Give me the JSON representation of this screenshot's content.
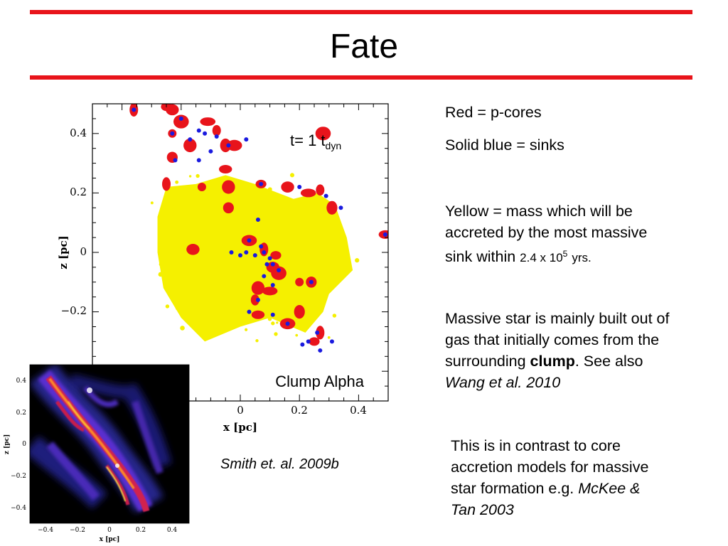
{
  "slide": {
    "title": "Fate"
  },
  "legend": {
    "red": "Red = p-cores",
    "blue": "Solid blue = sinks",
    "yellow_a": "Yellow = mass which will be",
    "yellow_b": "accreted by the most massive",
    "yellow_c": "sink within",
    "yellow_num": "2.4 x 10",
    "yellow_exp": "5",
    "yellow_end": "yrs."
  },
  "massive": {
    "l1": "Massive star is mainly built out of",
    "l2": "gas that initially comes from the",
    "l3a": "surrounding ",
    "l3b": "clump",
    "l3c": ". See also",
    "l4": "Wang et al. 2010"
  },
  "contrast": {
    "l1": "This is in contrast to core",
    "l2": "accretion models for massive",
    "l3a": "star formation e.g. ",
    "l3b": "McKee &",
    "l4": "Tan 2003"
  },
  "citation": "Smith et. al. 2009b",
  "colors": {
    "rule": "#e8141b",
    "core": "#e8141b",
    "sink": "#1a1adf",
    "accreted": "#f5f000"
  },
  "chart_data": [
    {
      "type": "scatter",
      "title": "",
      "xlabel": "x [pc]",
      "ylabel": "z [pc]",
      "xlim": [
        -0.5,
        0.5
      ],
      "ylim": [
        -0.5,
        0.5
      ],
      "xticks": [
        "0",
        "0.2",
        "0.4"
      ],
      "yticks": [
        "0.4",
        "0.2",
        "0",
        "−0.2"
      ],
      "annotation_time": "t= 1 t",
      "annotation_sub": "dyn",
      "annotation_label": "Clump Alpha",
      "series": [
        {
          "name": "Red = p-cores",
          "points": [
            [
              -0.36,
              0.48
            ],
            [
              -0.25,
              0.49
            ],
            [
              -0.23,
              0.48
            ],
            [
              -0.2,
              0.44
            ],
            [
              -0.23,
              0.4
            ],
            [
              -0.23,
              0.32
            ],
            [
              -0.17,
              0.36
            ],
            [
              -0.11,
              0.44
            ],
            [
              -0.08,
              0.41
            ],
            [
              -0.05,
              0.36
            ],
            [
              -0.05,
              0.28
            ],
            [
              -0.02,
              0.36
            ],
            [
              -0.25,
              0.23
            ],
            [
              0.07,
              0.23
            ],
            [
              0.16,
              0.22
            ],
            [
              0.28,
              0.4
            ],
            [
              -0.13,
              0.22
            ],
            [
              -0.04,
              0.15
            ],
            [
              -0.04,
              0.22
            ],
            [
              0.23,
              0.2
            ],
            [
              0.27,
              0.21
            ],
            [
              0.31,
              0.15
            ],
            [
              0.49,
              0.06
            ],
            [
              0.03,
              0.04
            ],
            [
              0.08,
              0.01
            ],
            [
              0.12,
              -0.01
            ],
            [
              0.11,
              -0.05
            ],
            [
              0.13,
              -0.07
            ],
            [
              0.2,
              -0.1
            ],
            [
              0.24,
              -0.1
            ],
            [
              0.06,
              -0.12
            ],
            [
              0.1,
              -0.13
            ],
            [
              0.05,
              -0.16
            ],
            [
              0.2,
              -0.2
            ],
            [
              0.06,
              -0.21
            ],
            [
              0.16,
              -0.24
            ],
            [
              0.27,
              -0.27
            ],
            [
              0.25,
              -0.3
            ],
            [
              -0.16,
              0.01
            ]
          ]
        },
        {
          "name": "Solid blue = sinks",
          "points": [
            [
              -0.36,
              0.48
            ],
            [
              -0.23,
              0.4
            ],
            [
              -0.2,
              0.45
            ],
            [
              -0.17,
              0.38
            ],
            [
              -0.14,
              0.41
            ],
            [
              -0.12,
              0.4
            ],
            [
              -0.08,
              0.39
            ],
            [
              -0.04,
              0.36
            ],
            [
              0.02,
              0.38
            ],
            [
              -0.22,
              0.31
            ],
            [
              -0.14,
              0.31
            ],
            [
              -0.1,
              0.34
            ],
            [
              0.07,
              0.23
            ],
            [
              0.2,
              0.22
            ],
            [
              0.29,
              0.19
            ],
            [
              0.34,
              0.15
            ],
            [
              0.49,
              0.06
            ],
            [
              0.03,
              0.04
            ],
            [
              -0.03,
              0.0
            ],
            [
              0.0,
              -0.01
            ],
            [
              0.02,
              0.0
            ],
            [
              0.05,
              -0.01
            ],
            [
              0.07,
              0.02
            ],
            [
              0.08,
              0.0
            ],
            [
              0.09,
              -0.04
            ],
            [
              0.1,
              -0.02
            ],
            [
              0.13,
              -0.06
            ],
            [
              0.11,
              -0.04
            ],
            [
              0.11,
              -0.11
            ],
            [
              0.08,
              -0.08
            ],
            [
              0.24,
              -0.1
            ],
            [
              0.06,
              -0.16
            ],
            [
              0.03,
              -0.2
            ],
            [
              0.11,
              -0.21
            ],
            [
              0.16,
              -0.24
            ],
            [
              0.26,
              -0.27
            ],
            [
              0.23,
              -0.3
            ],
            [
              0.31,
              -0.3
            ],
            [
              0.27,
              -0.33
            ],
            [
              0.21,
              -0.31
            ],
            [
              0.06,
              0.11
            ]
          ]
        },
        {
          "name": "Yellow = mass which will be accreted by the most massive sink within 2.4 x 10^5 yrs.",
          "region": [
            [
              -0.25,
              0.22
            ],
            [
              -0.15,
              0.23
            ],
            [
              -0.05,
              0.26
            ],
            [
              0.05,
              0.23
            ],
            [
              0.18,
              0.18
            ],
            [
              0.26,
              0.2
            ],
            [
              0.32,
              0.16
            ],
            [
              0.36,
              0.05
            ],
            [
              0.38,
              -0.06
            ],
            [
              0.3,
              -0.14
            ],
            [
              0.28,
              -0.2
            ],
            [
              0.22,
              -0.27
            ],
            [
              0.1,
              -0.22
            ],
            [
              0.0,
              -0.25
            ],
            [
              -0.12,
              -0.3
            ],
            [
              -0.2,
              -0.22
            ],
            [
              -0.26,
              -0.12
            ],
            [
              -0.28,
              0.0
            ],
            [
              -0.28,
              0.12
            ]
          ]
        }
      ]
    },
    {
      "type": "heatmap",
      "xlabel": "x [pc]",
      "ylabel": "z [pc]",
      "xlim": [
        -0.5,
        0.5
      ],
      "ylim": [
        -0.5,
        0.5
      ],
      "xticks": [
        "−0.4",
        "−0.2",
        "0",
        "0.2",
        "0.4"
      ],
      "yticks": [
        "0.4",
        "0.2",
        "0",
        "−0.2",
        "−0.4"
      ]
    }
  ]
}
